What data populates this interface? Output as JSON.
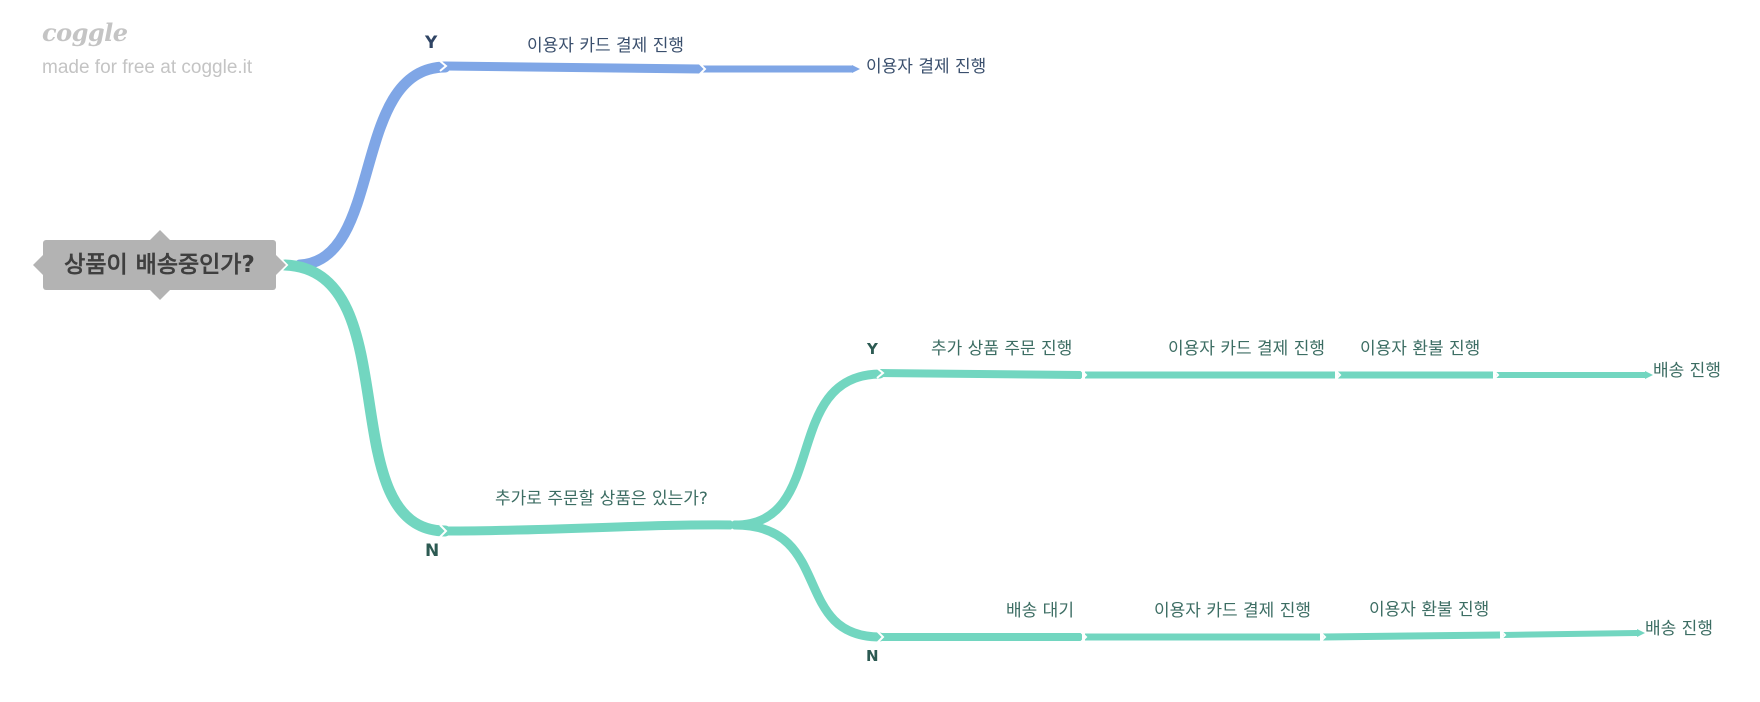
{
  "watermark": {
    "logo": "coggle",
    "tagline": "made for free at coggle.it"
  },
  "colors": {
    "blue_branch": "#7fa6e6",
    "teal_branch": "#72d6c0",
    "root_fill": "#b3b3b3",
    "root_text": "#3f3f3f"
  },
  "root": {
    "label": "상품이 배송중인가?"
  },
  "yes_branch": {
    "marker": "Y",
    "edge_labels": [
      "이용자 카드 결제 진행"
    ],
    "end_label": "이용자 결제 진행"
  },
  "no_branch": {
    "marker": "N",
    "edge_label": "추가로 주문할 상품은 있는가?",
    "sub_yes": {
      "marker": "Y",
      "edge_labels": [
        "추가 상품 주문 진행",
        "이용자 카드 결제 진행",
        "이용자 환불 진행"
      ],
      "end_label": "배송 진행"
    },
    "sub_no": {
      "marker": "N",
      "edge_labels": [
        "배송 대기",
        "이용자 카드 결제 진행",
        "이용자 환불 진행"
      ],
      "end_label": "배송 진행"
    }
  }
}
